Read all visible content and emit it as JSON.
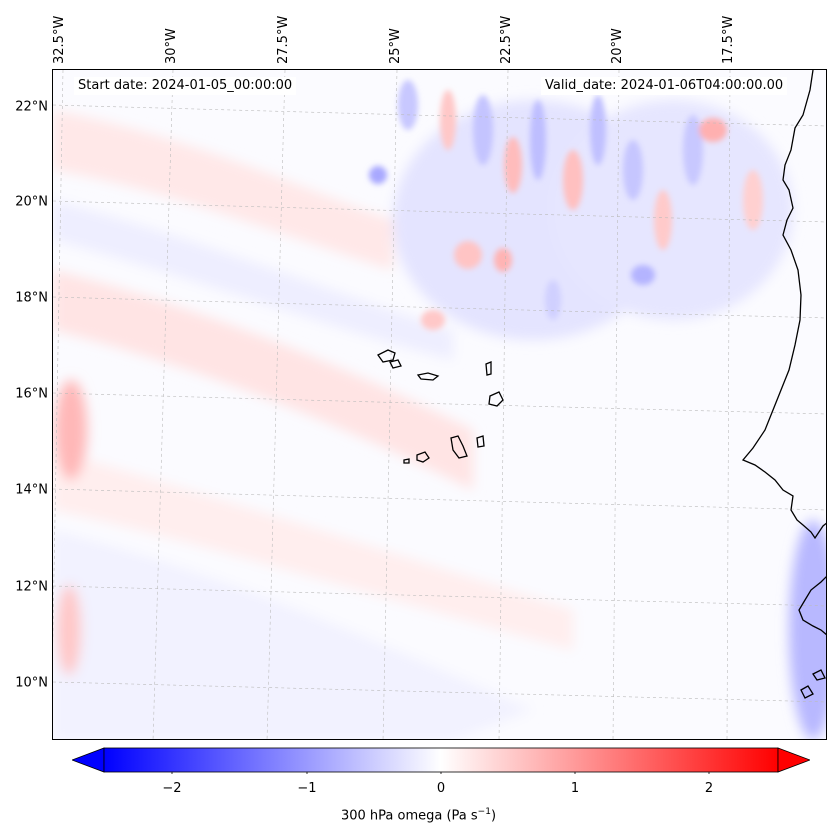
{
  "map": {
    "title_left": "Start date: 2024-01-05_00:00:00",
    "title_right": "Valid_date: 2024-01-06T04:00:00.00",
    "longitude_labels": [
      "32.5°W",
      "30°W",
      "27.5°W",
      "25°W",
      "22.5°W",
      "20°W",
      "17.5°W"
    ],
    "latitude_labels": [
      "22°N",
      "20°N",
      "18°N",
      "16°N",
      "14°N",
      "12°N",
      "10°N"
    ],
    "field": "300 hPa omega",
    "region": "Cabo Verde / West African coast"
  },
  "colorbar": {
    "label_prefix": "300 hPa omega (Pa s",
    "label_exponent": "−1",
    "label_suffix": ")",
    "ticks": [
      "−2",
      "−1",
      "0",
      "1",
      "2"
    ],
    "min": -2.5,
    "max": 2.5,
    "colormap": "bwr",
    "low_color": "#0000ff",
    "mid_color": "#ffffff",
    "high_color": "#ff0000"
  }
}
